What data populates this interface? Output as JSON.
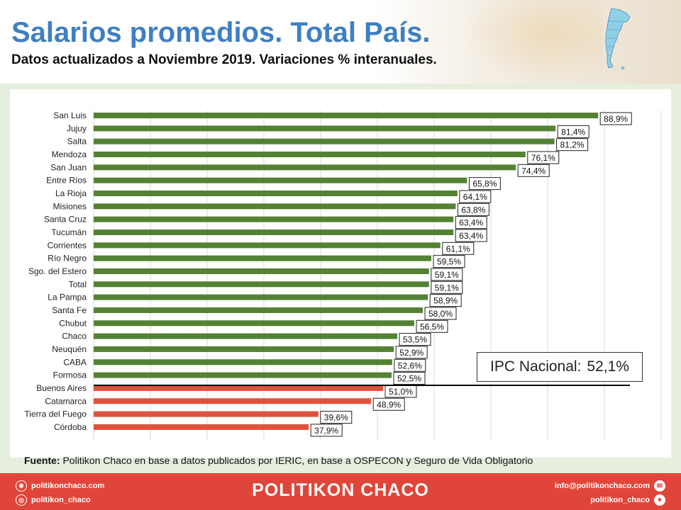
{
  "header": {
    "title": "Salarios promedios. Total País.",
    "subtitle": "Datos actualizados a Noviembre 2019. Variaciones % interanuales."
  },
  "ipc": {
    "label": "IPC Nacional:",
    "value_text": "52,1%",
    "value": 52.1
  },
  "source": {
    "label": "Fuente:",
    "text": "Politikon Chaco en base a datos publicados por IERIC,  en base a OSPECON y Seguro de Vida Obligatorio"
  },
  "footer": {
    "brand": "POLITIKON CHACO",
    "website": "politikonchaco.com",
    "instagram": "politikon_chaco",
    "email": "info@politikonchaco.com",
    "twitter": "politikon_chaco"
  },
  "colors": {
    "title": "#3f7fc2",
    "above": "#548235",
    "below": "#e0523c",
    "footer": "#e0453a",
    "panel": "#e6eedd"
  },
  "chart_data": {
    "type": "bar",
    "orientation": "horizontal",
    "xlim": [
      0,
      100
    ],
    "grid": true,
    "categories": [
      "San Luis",
      "Jujuy",
      "Salta",
      "Mendoza",
      "San Juan",
      "Entre Ríos",
      "La Rioja",
      "Misiones",
      "Santa Cruz",
      "Tucumán",
      "Corrientes",
      "Río Negro",
      "Sgo. del Estero",
      "Total",
      "La Pampa",
      "Santa Fe",
      "Chubut",
      "Chaco",
      "Neuquén",
      "CABA",
      "Formosa",
      "Buenos Aires",
      "Catamarca",
      "Tierra del Fuego",
      "Córdoba"
    ],
    "values": [
      88.9,
      81.4,
      81.2,
      76.1,
      74.4,
      65.8,
      64.1,
      63.8,
      63.4,
      63.4,
      61.1,
      59.5,
      59.1,
      59.1,
      58.9,
      58.0,
      56.5,
      53.5,
      52.9,
      52.6,
      52.5,
      51.0,
      48.9,
      39.6,
      37.9
    ],
    "labels": [
      "88,9%",
      "81,4%",
      "81,2%",
      "76,1%",
      "74,4%",
      "65,8%",
      "64,1%",
      "63,8%",
      "63,4%",
      "63,4%",
      "61,1%",
      "59,5%",
      "59,1%",
      "59,1%",
      "58,9%",
      "58,0%",
      "56,5%",
      "53,5%",
      "52,9%",
      "52,6%",
      "52,5%",
      "51,0%",
      "48,9%",
      "39,6%",
      "37,9%"
    ],
    "reference_line": 52.1
  }
}
